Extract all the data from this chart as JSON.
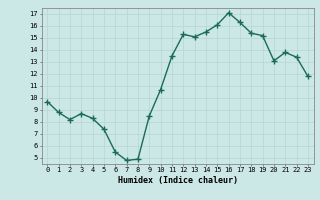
{
  "x": [
    0,
    1,
    2,
    3,
    4,
    5,
    6,
    7,
    8,
    9,
    10,
    11,
    12,
    13,
    14,
    15,
    16,
    17,
    18,
    19,
    20,
    21,
    22,
    23
  ],
  "y": [
    9.7,
    8.8,
    8.2,
    8.7,
    8.3,
    7.4,
    5.5,
    4.8,
    4.9,
    8.5,
    10.7,
    13.5,
    15.3,
    15.1,
    15.5,
    16.1,
    17.1,
    16.3,
    15.4,
    15.2,
    13.1,
    13.8,
    13.4,
    11.8
  ],
  "xlabel": "Humidex (Indice chaleur)",
  "bg_color": "#cce8e6",
  "line_color": "#1a6b5a",
  "grid_color": "#b8d8d6",
  "text_color": "#000000",
  "xlim": [
    -0.5,
    23.5
  ],
  "ylim": [
    4.5,
    17.5
  ],
  "yticks": [
    5,
    6,
    7,
    8,
    9,
    10,
    11,
    12,
    13,
    14,
    15,
    16,
    17
  ],
  "xticks": [
    0,
    1,
    2,
    3,
    4,
    5,
    6,
    7,
    8,
    9,
    10,
    11,
    12,
    13,
    14,
    15,
    16,
    17,
    18,
    19,
    20,
    21,
    22,
    23
  ]
}
